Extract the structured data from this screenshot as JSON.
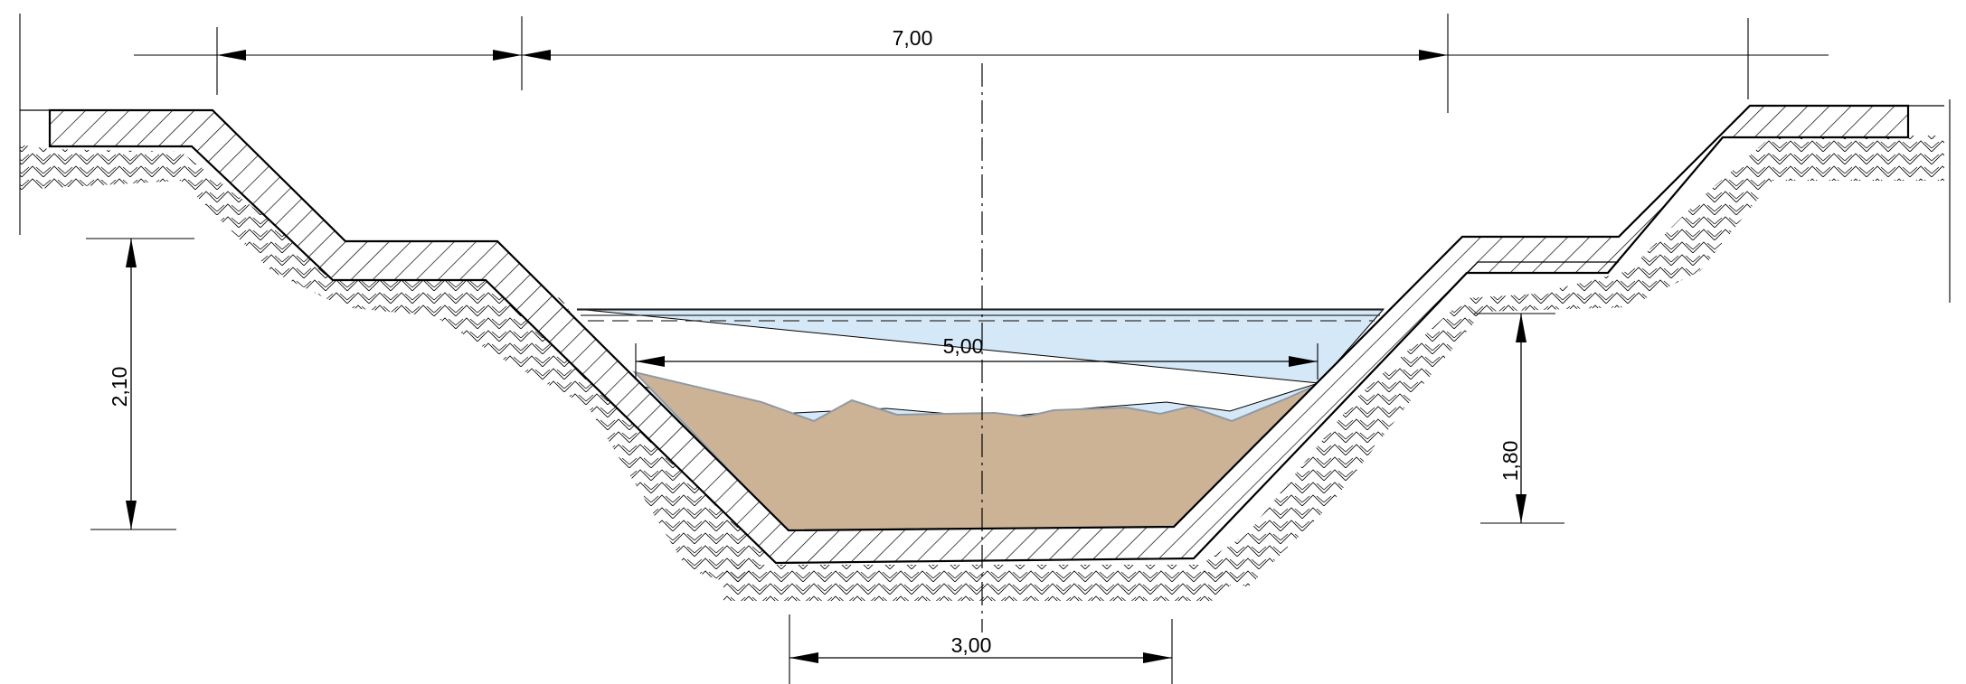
{
  "dimensions": {
    "top_width": "7,00",
    "water_width": "5,00",
    "bottom_width": "3,00",
    "left_height": "2,10",
    "right_height": "1,80"
  },
  "colors": {
    "water": "#d5e8f7",
    "sediment": "#cdb396",
    "sediment_edge": "#8f9aa6",
    "line": "#000000"
  }
}
